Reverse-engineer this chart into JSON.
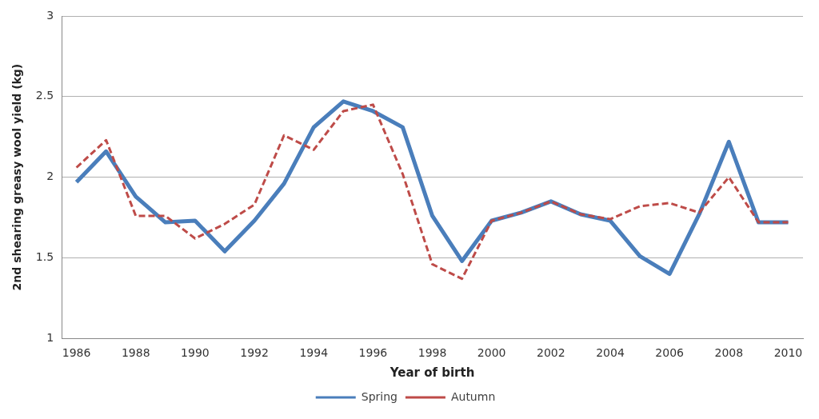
{
  "chart_data": {
    "type": "line",
    "xlabel": "Year of birth",
    "ylabel": "2nd shearing greasy wool yield (kg)",
    "categories": [
      "1986",
      null,
      "1988",
      null,
      "1990",
      null,
      "1992",
      null,
      "1994",
      null,
      "1996",
      null,
      "1998",
      null,
      "2000",
      null,
      "2002",
      null,
      "2004",
      null,
      "2006",
      null,
      "2008",
      null,
      "2010"
    ],
    "series": [
      {
        "name": "Spring",
        "color": "#4a7ebb",
        "line_style": "solid",
        "values": [
          1.97,
          2.16,
          1.88,
          1.72,
          1.73,
          1.54,
          1.73,
          1.96,
          2.31,
          2.47,
          2.41,
          2.31,
          1.76,
          1.48,
          1.73,
          1.78,
          1.85,
          1.77,
          1.73,
          1.51,
          1.4,
          1.77,
          2.22,
          1.72,
          1.72
        ]
      },
      {
        "name": "Autumn",
        "color": "#be4b48",
        "line_style": "dashed",
        "values": [
          2.06,
          2.23,
          1.76,
          1.76,
          1.62,
          1.71,
          1.83,
          2.26,
          2.17,
          2.41,
          2.45,
          2.02,
          1.46,
          1.37,
          1.73,
          1.78,
          1.85,
          1.77,
          1.74,
          1.82,
          1.84,
          1.78,
          2.0,
          1.72,
          1.72
        ]
      }
    ],
    "ylim": [
      1,
      3
    ],
    "yticks": [
      1,
      1.5,
      2,
      2.5,
      3
    ],
    "grid": "y",
    "legend": "bottom",
    "marker": "none"
  }
}
